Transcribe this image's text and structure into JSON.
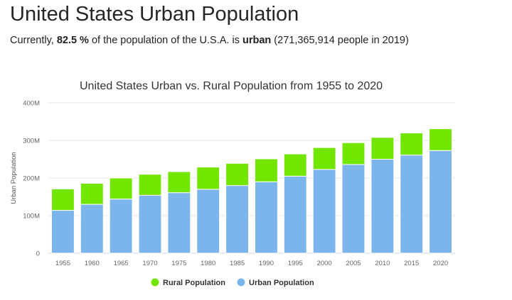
{
  "header": {
    "title": "United States Urban Population",
    "summary_prefix": "Currently, ",
    "summary_percent": "82.5 %",
    "summary_middle": " of the population of the U.S.A. is ",
    "summary_urban": "urban",
    "summary_suffix": " (271,365,914 people in 2019)"
  },
  "colors": {
    "rural": "#73e600",
    "urban": "#7cb4ec",
    "grid": "#e6e6e6",
    "axis": "#ccd6eb"
  },
  "chart_data": {
    "type": "bar",
    "stacked": true,
    "title": "United States Urban vs. Rural Population from 1955 to 2020",
    "ylabel": "Urban Population",
    "xlabel": "",
    "ylim": [
      0,
      400000000
    ],
    "yticks": [
      {
        "value": 0,
        "label": "0"
      },
      {
        "value": 100000000,
        "label": "100M"
      },
      {
        "value": 200000000,
        "label": "200M"
      },
      {
        "value": 300000000,
        "label": "300M"
      },
      {
        "value": 400000000,
        "label": "400M"
      }
    ],
    "categories": [
      "1955",
      "1960",
      "1965",
      "1970",
      "1975",
      "1980",
      "1985",
      "1990",
      "1995",
      "2000",
      "2005",
      "2010",
      "2015",
      "2020"
    ],
    "series": [
      {
        "name": "Urban Population",
        "color": "#7cb4ec",
        "values": [
          114000000,
          130000000,
          144000000,
          154000000,
          161000000,
          170000000,
          180000000,
          190000000,
          205000000,
          223000000,
          236000000,
          250000000,
          261000000,
          273000000
        ]
      },
      {
        "name": "Rural Population",
        "color": "#73e600",
        "values": [
          57000000,
          56000000,
          56000000,
          56000000,
          56000000,
          59000000,
          59000000,
          61000000,
          59000000,
          58000000,
          58000000,
          58000000,
          59000000,
          58000000
        ]
      }
    ],
    "legend": [
      {
        "name": "Rural Population",
        "color": "#73e600"
      },
      {
        "name": "Urban Population",
        "color": "#7cb4ec"
      }
    ],
    "legend_position": "bottom-center",
    "grid": true
  }
}
